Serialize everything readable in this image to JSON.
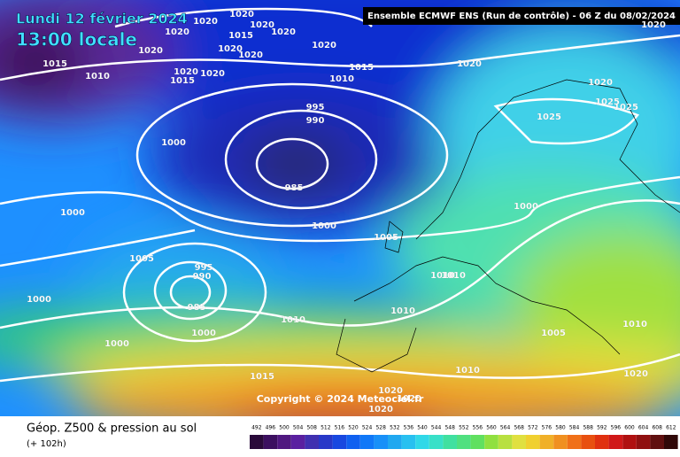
{
  "header": {
    "date": "Lundi 12 février 2024",
    "time": "13:00 locale",
    "run": "Ensemble ECMWF ENS  (Run de contrôle)  -  06 Z du 08/02/2024"
  },
  "copyright": "Copyright © 2024 Meteociel.fr",
  "footer": {
    "title": "Géop. Z500 & pression au sol",
    "lead": "(+ 102h)"
  },
  "isobar_labels": [
    "1020",
    "1020",
    "1020",
    "1020",
    "1015",
    "1020",
    "1020",
    "1020",
    "1020",
    "1020",
    "1015",
    "1010",
    "1020",
    "1020",
    "1015",
    "1015",
    "1020",
    "1010",
    "995",
    "990",
    "1000",
    "985",
    "1000",
    "1000",
    "1005",
    "1000",
    "1005",
    "995",
    "990",
    "985",
    "1000",
    "1010",
    "1000",
    "1000",
    "1010",
    "1010",
    "1010",
    "1005",
    "1010",
    "1010",
    "1015",
    "1020",
    "1020",
    "1020",
    "1025",
    "1025",
    "1025",
    "1020",
    "1020",
    "1020"
  ],
  "scale": [
    "492",
    "496",
    "500",
    "504",
    "508",
    "512",
    "516",
    "520",
    "524",
    "528",
    "532",
    "536",
    "540",
    "544",
    "548",
    "552",
    "556",
    "560",
    "564",
    "568",
    "572",
    "576",
    "580",
    "584",
    "588",
    "592",
    "596",
    "600",
    "604",
    "608",
    "612"
  ]
}
